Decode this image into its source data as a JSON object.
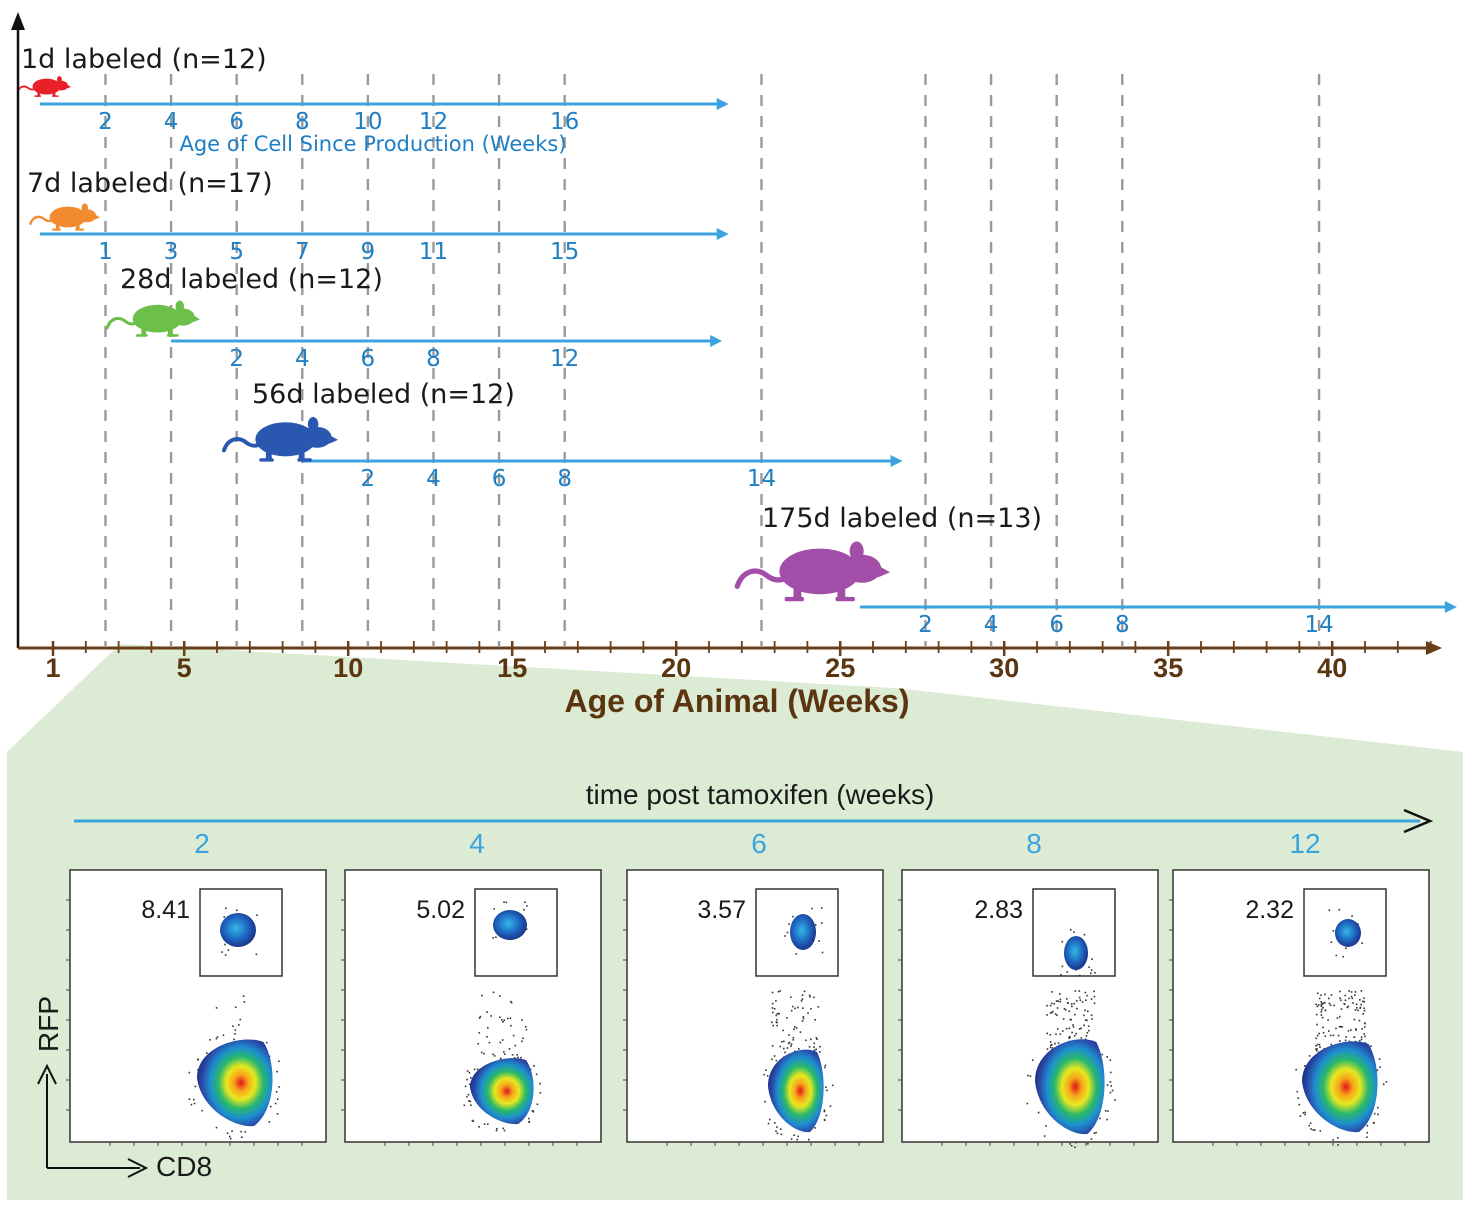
{
  "timeline": {
    "animal_axis": {
      "title": "Age of Animal (Weeks)",
      "tick_labels": [
        1,
        5,
        10,
        15,
        20,
        25,
        30,
        35,
        40
      ]
    },
    "cell_axis_title": "Age of Cell Since Production (Weeks)",
    "cohort_label_weeks": [
      2.6,
      4.6,
      6.6,
      8.6,
      10.6,
      12.6,
      14.6,
      16.6,
      22.6,
      27.6,
      29.6,
      31.6,
      33.6,
      39.6
    ],
    "cohorts": [
      {
        "label": "1d labeled (n=12)",
        "color": "#e8202a",
        "start_week": 0.6,
        "end_week": 21.6,
        "ticks": [
          {
            "week": 2.6,
            "text": "2"
          },
          {
            "week": 4.6,
            "text": "4"
          },
          {
            "week": 6.6,
            "text": "6"
          },
          {
            "week": 8.6,
            "text": "8"
          },
          {
            "week": 10.6,
            "text": "10"
          },
          {
            "week": 12.6,
            "text": "12"
          },
          {
            "week": 16.6,
            "text": "16"
          }
        ]
      },
      {
        "label": "7d labeled (n=17)",
        "color": "#f28a30",
        "start_week": 0.6,
        "end_week": 21.6,
        "ticks": [
          {
            "week": 2.6,
            "text": "1"
          },
          {
            "week": 4.6,
            "text": "3"
          },
          {
            "week": 6.6,
            "text": "5"
          },
          {
            "week": 8.6,
            "text": "7"
          },
          {
            "week": 10.6,
            "text": "9"
          },
          {
            "week": 12.6,
            "text": "11"
          },
          {
            "week": 16.6,
            "text": "15"
          }
        ]
      },
      {
        "label": "28d labeled (n=12)",
        "color": "#6cc04a",
        "start_week": 4.6,
        "end_week": 21.4,
        "ticks": [
          {
            "week": 6.6,
            "text": "2"
          },
          {
            "week": 8.6,
            "text": "4"
          },
          {
            "week": 10.6,
            "text": "6"
          },
          {
            "week": 12.6,
            "text": "8"
          },
          {
            "week": 16.6,
            "text": "12"
          }
        ]
      },
      {
        "label": "56d labeled (n=12)",
        "color": "#2a58b0",
        "start_week": 8.6,
        "end_week": 26.9,
        "ticks": [
          {
            "week": 10.6,
            "text": "2"
          },
          {
            "week": 12.6,
            "text": "4"
          },
          {
            "week": 14.6,
            "text": "6"
          },
          {
            "week": 16.6,
            "text": "8"
          },
          {
            "week": 22.6,
            "text": "14"
          }
        ]
      },
      {
        "label": "175d labeled (n=13)",
        "color": "#a24ea8",
        "start_week": 25.6,
        "end_week": 43.8,
        "ticks": [
          {
            "week": 27.6,
            "text": "2"
          },
          {
            "week": 29.6,
            "text": "4"
          },
          {
            "week": 31.6,
            "text": "6"
          },
          {
            "week": 33.6,
            "text": "8"
          },
          {
            "week": 39.6,
            "text": "14"
          }
        ]
      }
    ]
  },
  "flow": {
    "title": "time post tamoxifen (weeks)",
    "y_axis_label": "RFP",
    "x_axis_label": "CD8",
    "panels": [
      {
        "week": "2",
        "gate_value": "8.41"
      },
      {
        "week": "4",
        "gate_value": "5.02"
      },
      {
        "week": "6",
        "gate_value": "3.57"
      },
      {
        "week": "8",
        "gate_value": "2.83"
      },
      {
        "week": "12",
        "gate_value": "2.32"
      }
    ]
  },
  "colors": {
    "cell_axis": "#3ba4de",
    "animal_axis": "#6b3e1a",
    "zoom_band": "#dcebd3"
  }
}
